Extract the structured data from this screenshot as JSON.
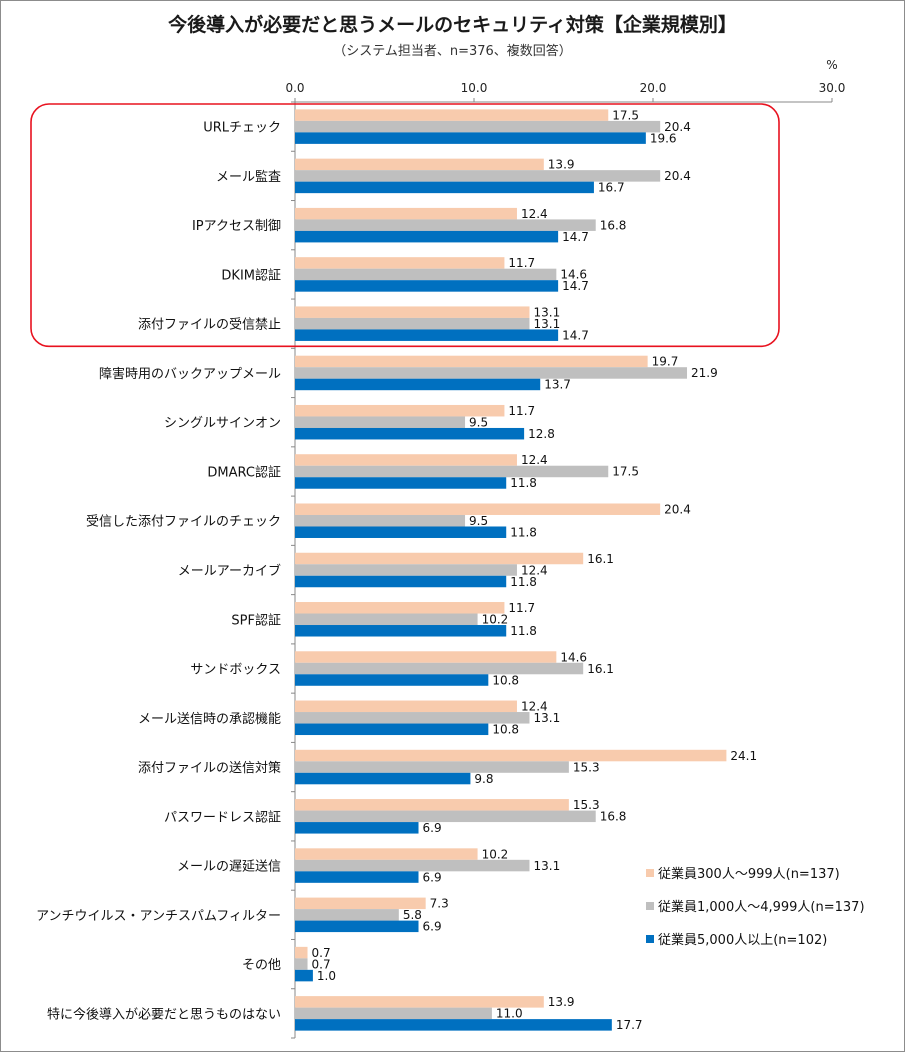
{
  "chart_data": {
    "type": "bar",
    "orientation": "horizontal",
    "title": "今後導入が必要だと思うメールのセキュリティ対策【企業規模別】",
    "subtitle": "（システム担当者、n=376、複数回答）",
    "unit": "%",
    "xlim": [
      0,
      30
    ],
    "xticks": [
      "0.0",
      "10.0",
      "20.0",
      "30.0"
    ],
    "legend_position": "bottom-right",
    "highlight_note": "top five categories enclosed by a red rounded rectangle",
    "categories": [
      "URLチェック",
      "メール監査",
      "IPアクセス制御",
      "DKIM認証",
      "添付ファイルの受信禁止",
      "障害時用のバックアップメール",
      "シングルサインオン",
      "DMARC認証",
      "受信した添付ファイルのチェック",
      "メールアーカイブ",
      "SPF認証",
      "サンドボックス",
      "メール送信時の承認機能",
      "添付ファイルの送信対策",
      "パスワードレス認証",
      "メールの遅延送信",
      "アンチウイルス・アンチスパムフィルター",
      "その他",
      "特に今後導入が必要だと思うものはない"
    ],
    "series": [
      {
        "name": "従業員300人～999人(n=137)",
        "color": "#f8cbad",
        "values": [
          17.5,
          13.9,
          12.4,
          11.7,
          13.1,
          19.7,
          11.7,
          12.4,
          20.4,
          16.1,
          11.7,
          14.6,
          12.4,
          24.1,
          15.3,
          10.2,
          7.3,
          0.7,
          13.9
        ]
      },
      {
        "name": "従業員1,000人～4,999人(n=137)",
        "color": "#bfbfbf",
        "values": [
          20.4,
          20.4,
          16.8,
          14.6,
          13.1,
          21.9,
          9.5,
          17.5,
          9.5,
          12.4,
          10.2,
          16.1,
          13.1,
          15.3,
          16.8,
          13.1,
          5.8,
          0.7,
          11.0
        ]
      },
      {
        "name": "従業員5,000人以上(n=102)",
        "color": "#0070c0",
        "values": [
          19.6,
          16.7,
          14.7,
          14.7,
          14.7,
          13.7,
          12.8,
          11.8,
          11.8,
          11.8,
          11.8,
          10.8,
          10.8,
          9.8,
          6.9,
          6.9,
          6.9,
          1.0,
          17.7
        ]
      }
    ]
  }
}
